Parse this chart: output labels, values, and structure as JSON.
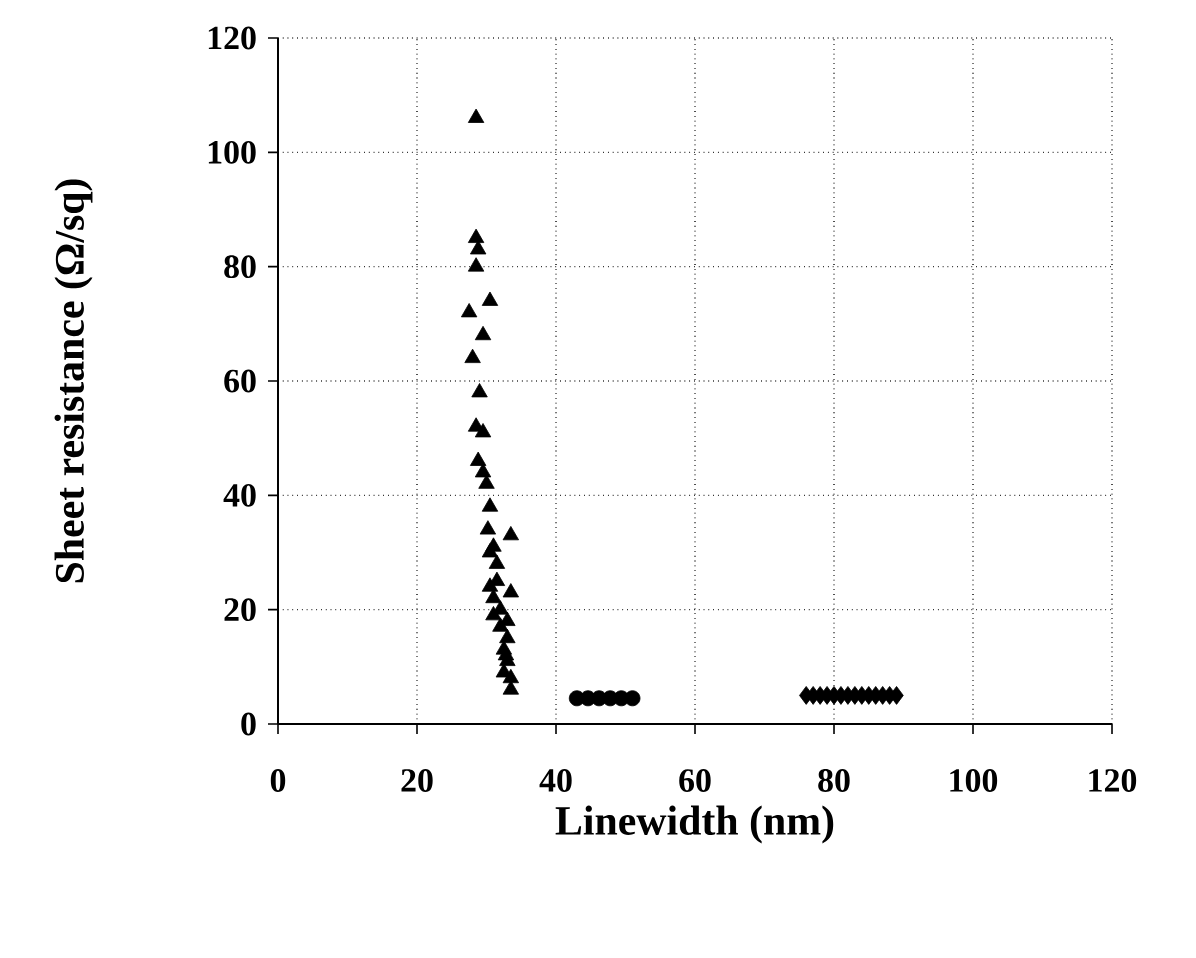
{
  "chart_data": {
    "type": "scatter",
    "xlabel": "Linewidth (nm)",
    "ylabel": "Sheet resistance (Ω/sq)",
    "xlim": [
      0,
      120
    ],
    "ylim": [
      0,
      120
    ],
    "xticks": [
      0,
      20,
      40,
      60,
      80,
      100,
      120
    ],
    "yticks": [
      0,
      20,
      40,
      60,
      80,
      100,
      120
    ],
    "grid": true,
    "series": [
      {
        "color": "#000000",
        "marker": "triangle",
        "x": [
          28.5,
          28.5,
          28.8,
          28.5,
          30.5,
          27.5,
          29.5,
          28,
          29,
          28.5,
          29.5,
          28.8,
          29.5,
          30,
          30.5,
          30.2,
          31,
          30.5,
          31.5,
          30.5,
          31,
          33.5,
          32,
          33.5,
          31,
          32,
          33,
          32.5,
          33,
          32.5,
          33.5,
          33.5,
          32.8,
          31.5,
          33
        ],
        "values": [
          106,
          85,
          83,
          80,
          74,
          72,
          68,
          64,
          58,
          52,
          51,
          46,
          44,
          42,
          38,
          34,
          31,
          30,
          28,
          24,
          22,
          33,
          20,
          23,
          19,
          17,
          15,
          13,
          11,
          9,
          8,
          6,
          12,
          25,
          18
        ]
      },
      {
        "color": "#000000",
        "marker": "circle",
        "x": [
          43,
          44.6,
          46.2,
          47.8,
          49.4,
          51
        ],
        "values": [
          4.5,
          4.5,
          4.5,
          4.5,
          4.5,
          4.5
        ]
      },
      {
        "color": "#000000",
        "marker": "diamond",
        "x": [
          76,
          77,
          78,
          79,
          80,
          81,
          82,
          83,
          84,
          85,
          86,
          87,
          88,
          89
        ],
        "values": [
          5,
          5,
          5,
          5,
          5,
          5,
          5,
          5,
          5,
          5,
          5,
          5,
          5,
          5
        ]
      }
    ]
  }
}
